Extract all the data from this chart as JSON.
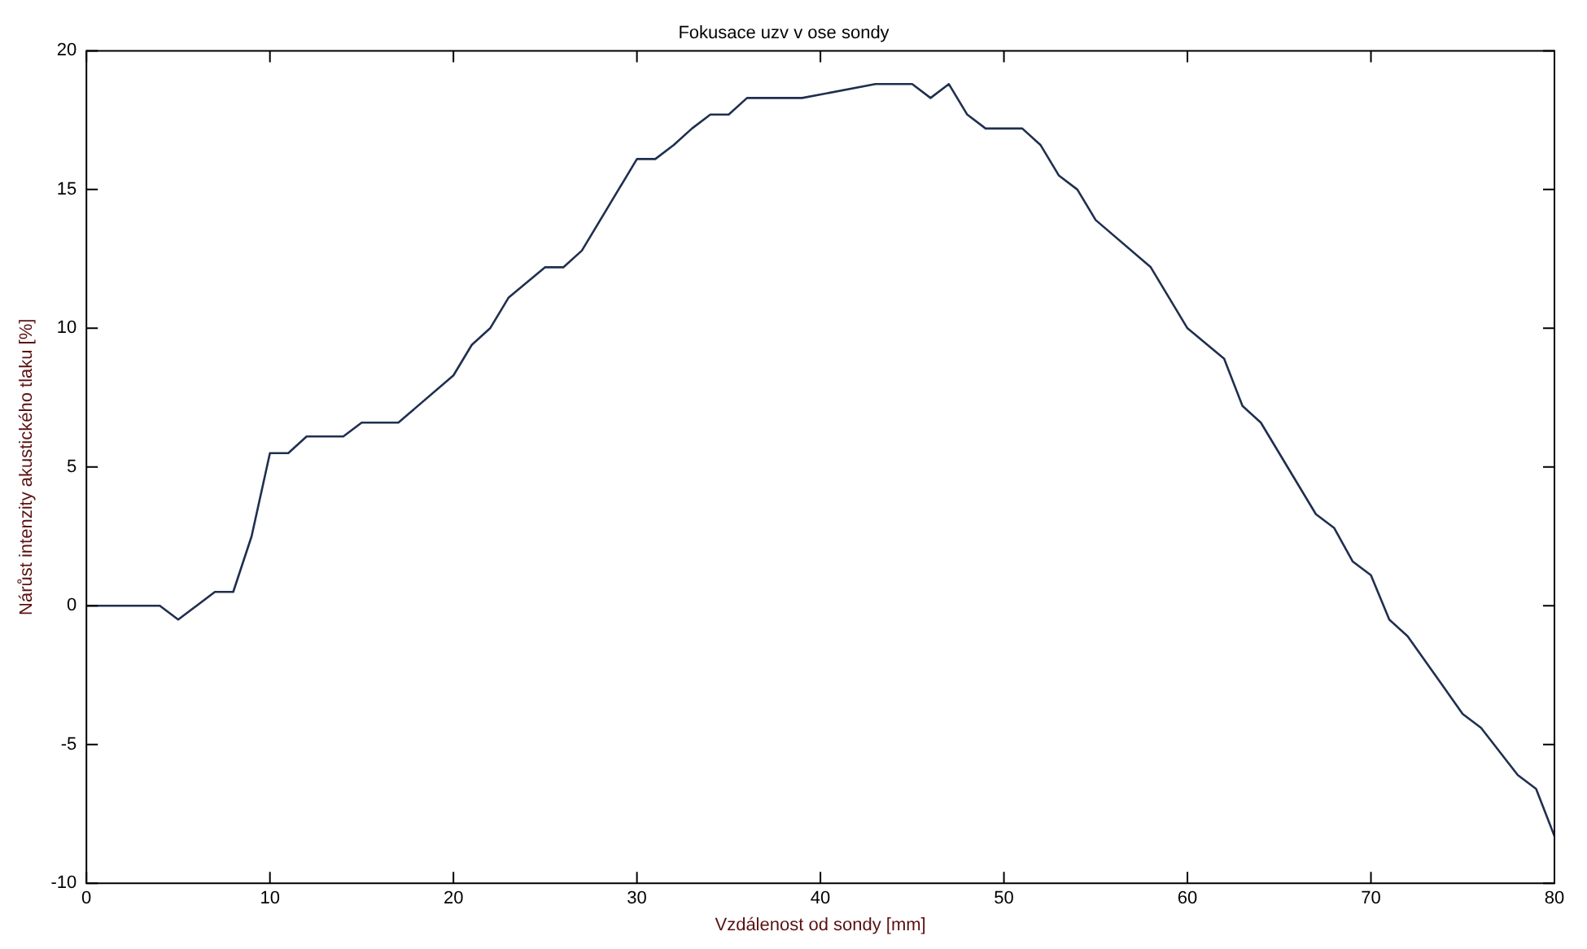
{
  "chart_data": {
    "type": "line",
    "title": "Fokusace uzv v ose sondy",
    "xlabel": "Vzdálenost od sondy [mm]",
    "ylabel": "Nárůst intenzity akustického tlaku [%]",
    "x": [
      0,
      4,
      5,
      7,
      8,
      9,
      10,
      11,
      12,
      14,
      15,
      17,
      20,
      21,
      22,
      23,
      25,
      26,
      27,
      30,
      31,
      32,
      33,
      34,
      35,
      36,
      39,
      43,
      45,
      46,
      47,
      48,
      49,
      51,
      52,
      53,
      54,
      55,
      58,
      60,
      62,
      63,
      64,
      67,
      68,
      69,
      70,
      71,
      72,
      75,
      76,
      78,
      79,
      80
    ],
    "series": [
      {
        "color": "#1f2f4f",
        "values": [
          0,
          0,
          -0.5,
          0.5,
          0.5,
          2.5,
          5.5,
          5.5,
          6.1,
          6.1,
          6.6,
          6.6,
          8.3,
          9.4,
          10,
          11.1,
          12.2,
          12.2,
          12.8,
          16.1,
          16.1,
          16.6,
          17.2,
          17.7,
          17.7,
          18.3,
          18.3,
          18.8,
          18.8,
          18.3,
          18.8,
          17.7,
          17.2,
          17.2,
          16.6,
          15.5,
          15,
          13.9,
          12.2,
          10,
          8.9,
          7.2,
          6.6,
          3.3,
          2.8,
          1.6,
          1.1,
          -0.5,
          -1.1,
          -3.9,
          -4.4,
          -6.1,
          -6.6,
          -8.3
        ]
      }
    ],
    "xlim": [
      0,
      80
    ],
    "xticks": [
      0,
      10,
      20,
      30,
      40,
      50,
      60,
      70,
      80
    ],
    "ylim": [
      -10,
      20
    ],
    "yticks": [
      -10,
      -5,
      0,
      5,
      10,
      15,
      20
    ],
    "grid": false,
    "legend": false,
    "marker": "none",
    "line_style": "solid"
  }
}
